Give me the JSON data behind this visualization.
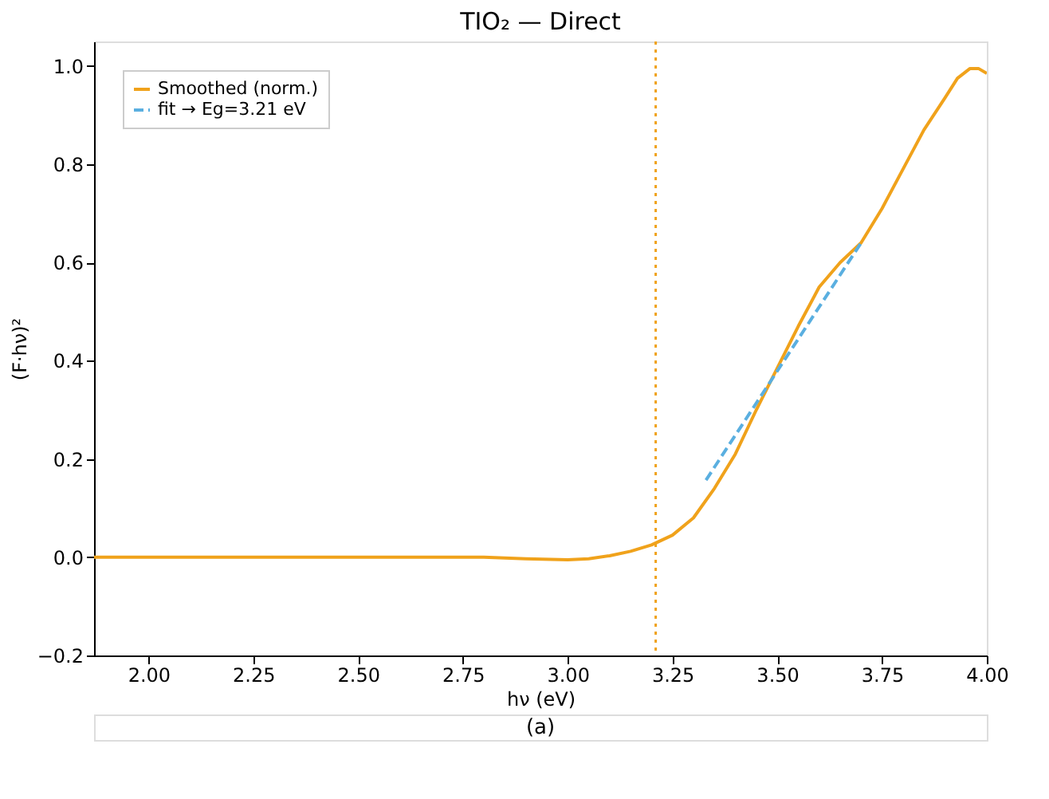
{
  "chart_data": {
    "type": "line",
    "title": "TIO₂ — Direct",
    "xlabel": "hν (eV)",
    "ylabel": "(F·hν)²",
    "series": [
      {
        "name": "Smoothed (norm.)",
        "color": "#f0a21b",
        "line_style": "solid",
        "x": [
          1.87,
          2.2,
          2.5,
          2.8,
          2.9,
          3.0,
          3.05,
          3.1,
          3.15,
          3.2,
          3.25,
          3.3,
          3.35,
          3.4,
          3.45,
          3.5,
          3.55,
          3.6,
          3.65,
          3.7,
          3.75,
          3.8,
          3.85,
          3.9,
          3.93,
          3.96,
          3.98,
          4.0
        ],
        "values": [
          0.0,
          0.0,
          0.0,
          0.0,
          -0.003,
          -0.005,
          -0.003,
          0.003,
          0.012,
          0.025,
          0.045,
          0.08,
          0.14,
          0.21,
          0.3,
          0.385,
          0.47,
          0.55,
          0.6,
          0.64,
          0.71,
          0.79,
          0.87,
          0.935,
          0.975,
          0.995,
          0.995,
          0.985
        ]
      },
      {
        "name": "fit → Eg=3.21 eV",
        "color": "#5aafe0",
        "line_style": "dashed",
        "x": [
          3.33,
          3.7
        ],
        "values": [
          0.157,
          0.64
        ]
      }
    ],
    "ref_lines": [
      {
        "axis": "x",
        "value": 3.21,
        "color": "#f0a21b",
        "line_style": "dotted"
      }
    ],
    "xlim": [
      1.87,
      4.0
    ],
    "xticks": [
      {
        "value": 2.0,
        "label": "2.00"
      },
      {
        "value": 2.25,
        "label": "2.25"
      },
      {
        "value": 2.5,
        "label": "2.50"
      },
      {
        "value": 2.75,
        "label": "2.75"
      },
      {
        "value": 3.0,
        "label": "3.00"
      },
      {
        "value": 3.25,
        "label": "3.25"
      },
      {
        "value": 3.5,
        "label": "3.50"
      },
      {
        "value": 3.75,
        "label": "3.75"
      },
      {
        "value": 4.0,
        "label": "4.00"
      }
    ],
    "ylim": [
      -0.2,
      1.05
    ],
    "yticks": [
      {
        "value": -0.2,
        "label": "−0.2"
      },
      {
        "value": 0.0,
        "label": "0.0"
      },
      {
        "value": 0.2,
        "label": "0.2"
      },
      {
        "value": 0.4,
        "label": "0.4"
      },
      {
        "value": 0.6,
        "label": "0.6"
      },
      {
        "value": 0.8,
        "label": "0.8"
      },
      {
        "value": 1.0,
        "label": "1.0"
      }
    ],
    "grid": false,
    "legend": "top left",
    "marker": "none",
    "annotations": [
      "(a)"
    ]
  }
}
